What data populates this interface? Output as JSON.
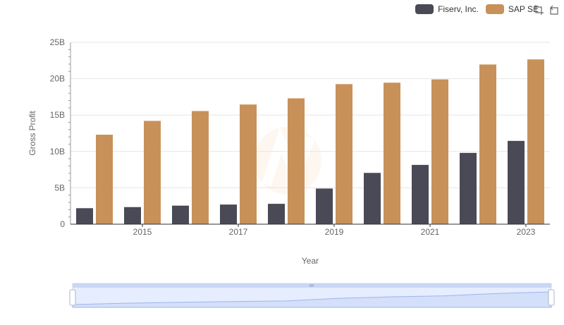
{
  "chart_data": {
    "type": "bar",
    "categories": [
      "2014",
      "2015",
      "2016",
      "2017",
      "2018",
      "2019",
      "2020",
      "2021",
      "2022",
      "2023"
    ],
    "x_tick_labels": [
      "2015",
      "2017",
      "2019",
      "2021",
      "2023"
    ],
    "series": [
      {
        "name": "Fiserv, Inc.",
        "color": "#4a4a56",
        "values": [
          2.2,
          2.35,
          2.55,
          2.7,
          2.8,
          4.9,
          7.05,
          8.15,
          9.8,
          11.45
        ]
      },
      {
        "name": "SAP SE",
        "color": "#c8915a",
        "values": [
          12.3,
          14.2,
          15.55,
          16.45,
          17.3,
          19.25,
          19.45,
          19.9,
          21.95,
          22.65
        ]
      }
    ],
    "xlabel": "Year",
    "ylabel": "Gross Profit",
    "ylim": [
      0,
      25
    ],
    "y_ticks": [
      0,
      5,
      10,
      15,
      20,
      25
    ],
    "y_tick_labels": [
      "0",
      "5B",
      "10B",
      "15B",
      "20B",
      "25B"
    ],
    "y_unit": "billions",
    "grid": true,
    "legend_position": "top-right"
  },
  "toolbar": {
    "zoom_icon": "zoom-select-icon",
    "reset_icon": "zoom-reset-icon"
  },
  "slider": {
    "range": [
      0,
      1
    ]
  }
}
